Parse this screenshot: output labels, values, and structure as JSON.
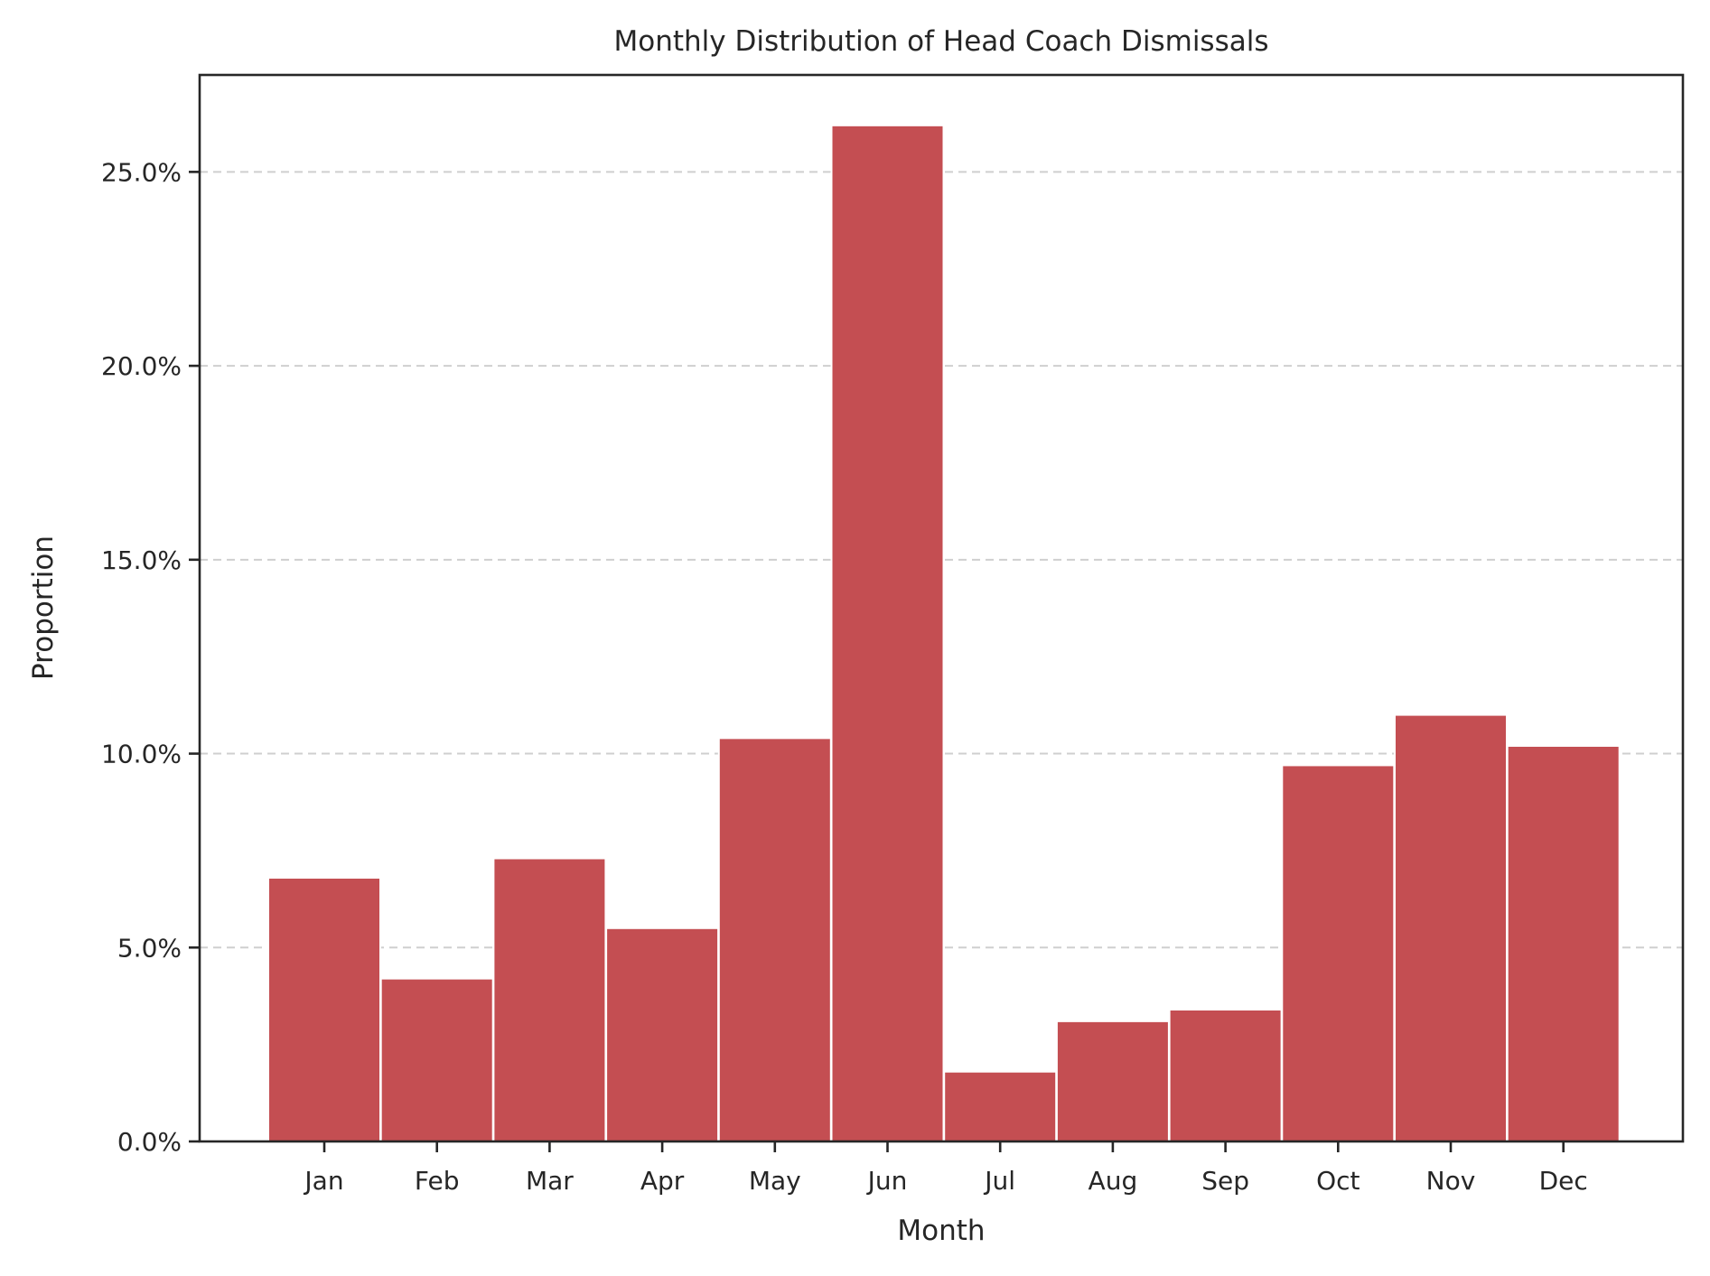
{
  "chart_data": {
    "type": "bar",
    "title": "Monthly Distribution of Head Coach Dismissals",
    "xlabel": "Month",
    "ylabel": "Proportion",
    "categories": [
      "Jan",
      "Feb",
      "Mar",
      "Apr",
      "May",
      "Jun",
      "Jul",
      "Aug",
      "Sep",
      "Oct",
      "Nov",
      "Dec"
    ],
    "values": [
      6.8,
      4.2,
      7.3,
      5.5,
      10.4,
      26.2,
      1.8,
      3.1,
      3.4,
      9.7,
      11.0,
      10.2
    ],
    "value_unit": "percent",
    "ylim": [
      0,
      27.5
    ],
    "yticks": [
      0,
      5,
      10,
      15,
      20,
      25
    ],
    "ytick_labels": [
      "0.0%",
      "5.0%",
      "10.0%",
      "15.0%",
      "20.0%",
      "25.0%"
    ],
    "grid": "y-dashed",
    "bar_color": "#c44e52",
    "legend": "none"
  }
}
